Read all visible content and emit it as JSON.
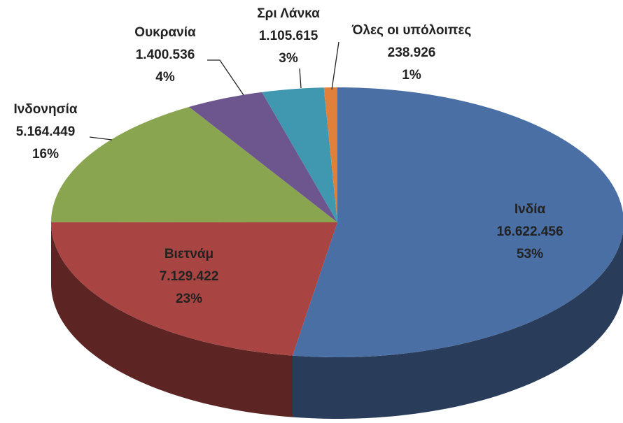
{
  "chart_data": {
    "type": "pie",
    "categories": [
      "Ινδία",
      "Βιετνάμ",
      "Ινδονησία",
      "Ουκρανία",
      "Σρι Λάνκα",
      "Όλες οι υπόλοιπες"
    ],
    "values": [
      16622456,
      7129422,
      5164449,
      1400536,
      1105615,
      238926
    ],
    "value_labels": [
      "16.622.456",
      "7.129.422",
      "5.164.449",
      "1.400.536",
      "1.105.615",
      "238.926"
    ],
    "percent_labels": [
      "53%",
      "23%",
      "16%",
      "4%",
      "3%",
      "1%"
    ],
    "colors": [
      "#4a6fa5",
      "#a84442",
      "#8aa54f",
      "#6d558e",
      "#3f97b0",
      "#e0803a"
    ]
  }
}
